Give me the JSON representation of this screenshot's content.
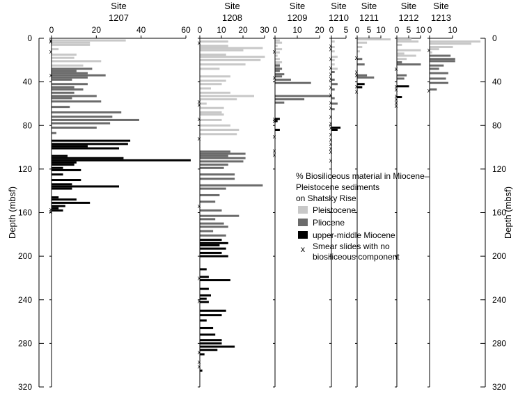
{
  "chart_data": {
    "type": "bar",
    "orientation": "horizontal",
    "title": "% Biosiliceous material in Miocene– Pleistocene sediments on Shatsky Rise",
    "title_lines": [
      "% Biosiliceous material in Miocene–",
      "Pleistocene sediments",
      "on Shatsky Rise"
    ],
    "ylabel": "Depth (mbsf)",
    "ylim": [
      0,
      320
    ],
    "y_ticks": [
      0,
      40,
      80,
      120,
      160,
      200,
      240,
      280,
      320
    ],
    "y_reversed": true,
    "grid": false,
    "legend_position": "right-middle",
    "series_legend": [
      {
        "key": "pleistocene",
        "name": "Pleistocene",
        "color": "#c8c8c8"
      },
      {
        "key": "pliocene",
        "name": "Pliocene",
        "color": "#6b6b6b"
      },
      {
        "key": "miocene",
        "name": "upper-middle Miocene",
        "color": "#000000"
      }
    ],
    "smear_legend": {
      "symbol": "x",
      "label_lines": [
        "Smear slides with no",
        "biosiliceous component"
      ]
    },
    "panels": [
      {
        "site_label": [
          "Site",
          "1207"
        ],
        "xlim": [
          0,
          60
        ],
        "x_ticks": [
          0,
          20,
          40,
          60
        ],
        "bars": [
          [
            2,
            33,
            "pleistocene"
          ],
          [
            4,
            17,
            "pleistocene"
          ],
          [
            6,
            17,
            "pleistocene"
          ],
          [
            10,
            3,
            "pleistocene"
          ],
          [
            15,
            11,
            "pleistocene"
          ],
          [
            18,
            10,
            "pleistocene"
          ],
          [
            21,
            22,
            "pleistocene"
          ],
          [
            25,
            14,
            "pleistocene"
          ],
          [
            28,
            18,
            "pliocene"
          ],
          [
            30,
            11,
            "pliocene"
          ],
          [
            32,
            16,
            "pliocene"
          ],
          [
            34,
            24,
            "pliocene"
          ],
          [
            36,
            16,
            "pliocene"
          ],
          [
            38,
            9,
            "pliocene"
          ],
          [
            42,
            16,
            "pliocene"
          ],
          [
            45,
            10,
            "pliocene"
          ],
          [
            47,
            14,
            "pliocene"
          ],
          [
            50,
            10,
            "pliocene"
          ],
          [
            53,
            20,
            "pliocene"
          ],
          [
            55,
            9,
            "pliocene"
          ],
          [
            58,
            22,
            "pliocene"
          ],
          [
            63,
            8,
            "pliocene"
          ],
          [
            68,
            31,
            "pliocene"
          ],
          [
            72,
            27,
            "pliocene"
          ],
          [
            75,
            39,
            "pliocene"
          ],
          [
            78,
            26,
            "pliocene"
          ],
          [
            82,
            20,
            "pliocene"
          ],
          [
            87,
            2,
            "pliocene"
          ],
          [
            94,
            35,
            "miocene"
          ],
          [
            97,
            34,
            "miocene"
          ],
          [
            99,
            16,
            "miocene"
          ],
          [
            101,
            30,
            "miocene"
          ],
          [
            108,
            7,
            "miocene"
          ],
          [
            110,
            32,
            "miocene"
          ],
          [
            112,
            62,
            "miocene"
          ],
          [
            114,
            11,
            "miocene"
          ],
          [
            116,
            10,
            "miocene"
          ],
          [
            119,
            5,
            "miocene"
          ],
          [
            121,
            13,
            "miocene"
          ],
          [
            125,
            5,
            "miocene"
          ],
          [
            130,
            13,
            "miocene"
          ],
          [
            134,
            9,
            "miocene"
          ],
          [
            136,
            30,
            "miocene"
          ],
          [
            138,
            9,
            "miocene"
          ],
          [
            146,
            3,
            "miocene"
          ],
          [
            148,
            11,
            "miocene"
          ],
          [
            151,
            17,
            "miocene"
          ],
          [
            154,
            6,
            "miocene"
          ],
          [
            156,
            3,
            "miocene"
          ],
          [
            158,
            5,
            "miocene"
          ]
        ],
        "smears": [
          2,
          3,
          12,
          34,
          157,
          159
        ]
      },
      {
        "site_label": [
          "Site",
          "1208"
        ],
        "xlim": [
          0,
          30
        ],
        "x_ticks": [
          0,
          10,
          20,
          30
        ],
        "bars": [
          [
            3,
            13,
            "pleistocene"
          ],
          [
            7,
            13,
            "pleistocene"
          ],
          [
            9,
            29,
            "pleistocene"
          ],
          [
            11,
            20,
            "pleistocene"
          ],
          [
            15,
            12,
            "pleistocene"
          ],
          [
            17,
            30,
            "pleistocene"
          ],
          [
            20,
            28,
            "pleistocene"
          ],
          [
            24,
            21,
            "pleistocene"
          ],
          [
            28,
            9,
            "pleistocene"
          ],
          [
            35,
            14,
            "pleistocene"
          ],
          [
            39,
            12,
            "pleistocene"
          ],
          [
            42,
            10,
            "pleistocene"
          ],
          [
            46,
            5,
            "pleistocene"
          ],
          [
            50,
            14,
            "pleistocene"
          ],
          [
            53,
            25,
            "pleistocene"
          ],
          [
            56,
            17,
            "pleistocene"
          ],
          [
            60,
            3,
            "pleistocene"
          ],
          [
            64,
            11,
            "pleistocene"
          ],
          [
            68,
            10,
            "pleistocene"
          ],
          [
            70,
            11,
            "pleistocene"
          ],
          [
            75,
            10,
            "pleistocene"
          ],
          [
            80,
            14,
            "pleistocene"
          ],
          [
            84,
            18,
            "pleistocene"
          ],
          [
            88,
            17,
            "pleistocene"
          ],
          [
            104,
            14,
            "pliocene"
          ],
          [
            106,
            21,
            "pliocene"
          ],
          [
            108,
            13,
            "pliocene"
          ],
          [
            110,
            21,
            "pliocene"
          ],
          [
            113,
            20,
            "pliocene"
          ],
          [
            116,
            13,
            "pliocene"
          ],
          [
            119,
            11,
            "pliocene"
          ],
          [
            125,
            16,
            "pliocene"
          ],
          [
            129,
            16,
            "pliocene"
          ],
          [
            135,
            29,
            "pliocene"
          ],
          [
            138,
            12,
            "pliocene"
          ],
          [
            144,
            9,
            "pliocene"
          ],
          [
            150,
            7,
            "pliocene"
          ],
          [
            158,
            10,
            "pliocene"
          ],
          [
            163,
            18,
            "pliocene"
          ],
          [
            166,
            7,
            "pliocene"
          ],
          [
            170,
            11,
            "pliocene"
          ],
          [
            173,
            13,
            "pliocene"
          ],
          [
            177,
            6,
            "pliocene"
          ],
          [
            181,
            12,
            "pliocene"
          ],
          [
            185,
            10,
            "miocene"
          ],
          [
            188,
            13,
            "miocene"
          ],
          [
            190,
            9,
            "miocene"
          ],
          [
            193,
            12,
            "miocene"
          ],
          [
            197,
            10,
            "miocene"
          ],
          [
            200,
            13,
            "miocene"
          ],
          [
            212,
            3,
            "miocene"
          ],
          [
            219,
            4,
            "miocene"
          ],
          [
            222,
            14,
            "miocene"
          ],
          [
            230,
            4,
            "miocene"
          ],
          [
            236,
            5,
            "miocene"
          ],
          [
            239,
            3,
            "miocene"
          ],
          [
            242,
            4,
            "miocene"
          ],
          [
            250,
            12,
            "miocene"
          ],
          [
            254,
            10,
            "miocene"
          ],
          [
            259,
            3,
            "miocene"
          ],
          [
            266,
            6,
            "miocene"
          ],
          [
            272,
            7,
            "miocene"
          ],
          [
            277,
            10,
            "miocene"
          ],
          [
            280,
            10,
            "miocene"
          ],
          [
            283,
            16,
            "miocene"
          ],
          [
            286,
            8,
            "miocene"
          ],
          [
            290,
            2,
            "miocene"
          ],
          [
            305,
            1,
            "miocene"
          ]
        ],
        "smears": [
          4,
          58,
          61,
          74,
          92,
          154,
          220,
          241,
          288,
          297,
          301
        ]
      },
      {
        "site_label": [
          "Site",
          "1209"
        ],
        "xlim": [
          0,
          20
        ],
        "x_ticks": [
          0,
          10,
          20
        ],
        "bars": [
          [
            2,
            2,
            "pleistocene"
          ],
          [
            4,
            3,
            "pleistocene"
          ],
          [
            7,
            1,
            "pleistocene"
          ],
          [
            10,
            3,
            "pleistocene"
          ],
          [
            13,
            2,
            "pleistocene"
          ],
          [
            16,
            1,
            "pleistocene"
          ],
          [
            19,
            2,
            "pleistocene"
          ],
          [
            22,
            3,
            "pleistocene"
          ],
          [
            24,
            2,
            "pleistocene"
          ],
          [
            27,
            2,
            "pleistocene"
          ],
          [
            25,
            2,
            "pliocene"
          ],
          [
            28,
            3,
            "pliocene"
          ],
          [
            30,
            2,
            "pliocene"
          ],
          [
            33,
            4,
            "pliocene"
          ],
          [
            35,
            3,
            "pliocene"
          ],
          [
            38,
            7,
            "pliocene"
          ],
          [
            41,
            16,
            "pliocene"
          ],
          [
            53,
            25,
            "pliocene"
          ],
          [
            56,
            13,
            "pliocene"
          ],
          [
            59,
            4,
            "pliocene"
          ],
          [
            74,
            2,
            "miocene"
          ],
          [
            76,
            1,
            "miocene"
          ],
          [
            84,
            2,
            "miocene"
          ]
        ],
        "smears": [
          12,
          36,
          74,
          76,
          90,
          103,
          107
        ]
      },
      {
        "site_label": [
          "Site",
          "1210"
        ],
        "xlim": [
          0,
          5
        ],
        "x_ticks": [
          0,
          5
        ],
        "bars": [
          [
            3,
            1,
            "pleistocene"
          ],
          [
            8,
            1,
            "pleistocene"
          ],
          [
            12,
            1,
            "pleistocene"
          ],
          [
            17,
            2,
            "pleistocene"
          ],
          [
            20,
            1,
            "pleistocene"
          ],
          [
            24,
            1,
            "pleistocene"
          ],
          [
            28,
            2,
            "pleistocene"
          ],
          [
            31,
            1,
            "pliocene"
          ],
          [
            38,
            1,
            "pliocene"
          ],
          [
            42,
            2,
            "pliocene"
          ],
          [
            47,
            1,
            "pliocene"
          ],
          [
            55,
            1,
            "pliocene"
          ],
          [
            60,
            2,
            "pliocene"
          ],
          [
            65,
            1,
            "pliocene"
          ],
          [
            82,
            3,
            "miocene"
          ],
          [
            84,
            2,
            "miocene"
          ]
        ],
        "smears": [
          7,
          10,
          19,
          27,
          33,
          37,
          45,
          52,
          59,
          64,
          72,
          78,
          82,
          88,
          93,
          97,
          101,
          104,
          112
        ]
      },
      {
        "site_label": [
          "Site",
          "1211"
        ],
        "xlim": [
          0,
          10
        ],
        "x_ticks": [
          0,
          5,
          10
        ],
        "bars": [
          [
            1,
            14,
            "pleistocene"
          ],
          [
            4,
            4,
            "pleistocene"
          ],
          [
            8,
            2,
            "pleistocene"
          ],
          [
            12,
            1,
            "pleistocene"
          ],
          [
            19,
            2,
            "pliocene"
          ],
          [
            24,
            3,
            "pliocene"
          ],
          [
            34,
            4,
            "pliocene"
          ],
          [
            36,
            7,
            "pliocene"
          ],
          [
            42,
            3,
            "miocene"
          ],
          [
            45,
            2,
            "miocene"
          ]
        ],
        "smears": [
          18,
          31,
          34,
          44,
          49
        ]
      },
      {
        "site_label": [
          "Site",
          "1212"
        ],
        "xlim": [
          0,
          10
        ],
        "x_ticks": [
          0,
          5,
          10
        ],
        "bars": [
          [
            1,
            6,
            "pleistocene"
          ],
          [
            3,
            9,
            "pleistocene"
          ],
          [
            6,
            2,
            "pleistocene"
          ],
          [
            11,
            10,
            "pleistocene"
          ],
          [
            14,
            3,
            "pleistocene"
          ],
          [
            16,
            8,
            "pleistocene"
          ],
          [
            19,
            4,
            "pleistocene"
          ],
          [
            22,
            2,
            "pliocene"
          ],
          [
            24,
            10,
            "pliocene"
          ],
          [
            34,
            4,
            "pliocene"
          ],
          [
            37,
            3,
            "pliocene"
          ],
          [
            44,
            5,
            "miocene"
          ],
          [
            54,
            2,
            "miocene"
          ]
        ],
        "smears": [
          28,
          44,
          47,
          53,
          56,
          59,
          62
        ]
      },
      {
        "site_label": [
          "Site",
          "1213"
        ],
        "xlim": [
          0,
          10
        ],
        "x_ticks": [
          0,
          10
        ],
        "bars": [
          [
            3,
            22,
            "pleistocene"
          ],
          [
            5,
            18,
            "pleistocene"
          ],
          [
            8,
            10,
            "pleistocene"
          ],
          [
            10,
            4,
            "pleistocene"
          ],
          [
            13,
            1,
            "pleistocene"
          ],
          [
            16,
            9,
            "pliocene"
          ],
          [
            19,
            11,
            "pliocene"
          ],
          [
            21,
            11,
            "pliocene"
          ],
          [
            25,
            6,
            "pliocene"
          ],
          [
            28,
            4,
            "pliocene"
          ],
          [
            32,
            8,
            "pliocene"
          ],
          [
            37,
            7,
            "pliocene"
          ],
          [
            41,
            8,
            "pliocene"
          ],
          [
            47,
            3,
            "pliocene"
          ]
        ],
        "smears": [
          11,
          48
        ]
      }
    ]
  }
}
